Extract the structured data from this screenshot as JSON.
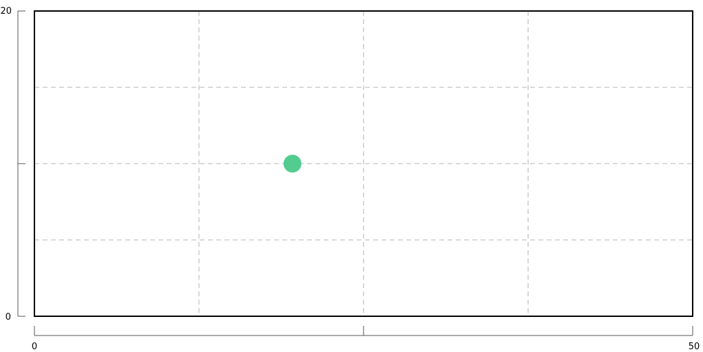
{
  "chart_data": {
    "type": "scatter",
    "title": "",
    "xlabel": "",
    "ylabel": "",
    "xlim": [
      0,
      50
    ],
    "ylim": [
      0,
      20
    ],
    "x_tick_labels": [
      "0",
      "50"
    ],
    "y_tick_labels": [
      "0",
      "20"
    ],
    "grid": true,
    "grid_style": "dashed",
    "series": [
      {
        "color": "#52cc8f",
        "points": [
          {
            "x": 19.6,
            "y": 10
          }
        ]
      }
    ]
  }
}
